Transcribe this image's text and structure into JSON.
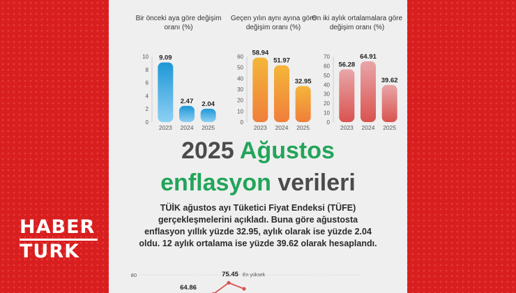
{
  "brand": {
    "line1": "HABER",
    "line2": "TURK"
  },
  "headline": {
    "year": "2025",
    "month": "Ağustos",
    "word1": "enflasyon",
    "word2": "verileri"
  },
  "description": "TÜİK ağustos ayı Tüketici Fiyat Endeksi (TÜFE) gerçekleşmelerini açıkladı. Buna göre ağustosta enflasyon yıllık yüzde 32.95, aylık olarak ise yüzde 2.04 oldu. 12 aylık ortalama ise yüzde 39.62 olarak hesaplandı.",
  "colors": {
    "blue": "#1e97d6",
    "yellow": "#f4b63a",
    "pink": "#e39da0",
    "green": "#22a55a",
    "red": "#d81e1e"
  },
  "chart_data": [
    {
      "type": "bar",
      "title": "Bir önceki aya göre değişim oranı (%)",
      "categories": [
        "2023",
        "2024",
        "2025"
      ],
      "values": [
        9.09,
        2.47,
        2.04
      ],
      "value_labels": [
        "9.09",
        "2.47",
        "2.04"
      ],
      "ylim": [
        0,
        10
      ],
      "yticks": [
        0,
        2,
        4,
        6,
        8,
        10
      ],
      "color": "#1e97d6",
      "fade_color": "#8dd0f3"
    },
    {
      "type": "bar",
      "title": "Geçen yılın aynı ayına göre değişim oranı (%)",
      "categories": [
        "2023",
        "2024",
        "2025"
      ],
      "values": [
        58.94,
        51.97,
        32.95
      ],
      "value_labels": [
        "58.94",
        "51.97",
        "32.95"
      ],
      "ylim": [
        0,
        60
      ],
      "yticks": [
        0,
        10,
        20,
        30,
        40,
        50,
        60
      ],
      "color": "#f4b63a",
      "fade_color": "#f07e3a"
    },
    {
      "type": "bar",
      "title": "On iki aylık ortalamalara göre değişim oranı (%)",
      "categories": [
        "2023",
        "2024",
        "2025"
      ],
      "values": [
        56.28,
        64.91,
        39.62
      ],
      "value_labels": [
        "56.28",
        "64.91",
        "39.62"
      ],
      "ylim": [
        0,
        70
      ],
      "yticks": [
        0,
        10,
        20,
        30,
        40,
        50,
        60,
        70
      ],
      "color": "#e8a6a8",
      "fade_color": "#d9534f"
    },
    {
      "type": "line",
      "ytick_top": "80",
      "annotations": [
        {
          "value": "64.86",
          "label": ""
        },
        {
          "value": "75.45",
          "label": "En yüksek"
        }
      ],
      "values": [
        64.86,
        69.0,
        75.45,
        72.0
      ],
      "ylim": [
        60,
        80
      ],
      "color": "#d9534f"
    }
  ]
}
